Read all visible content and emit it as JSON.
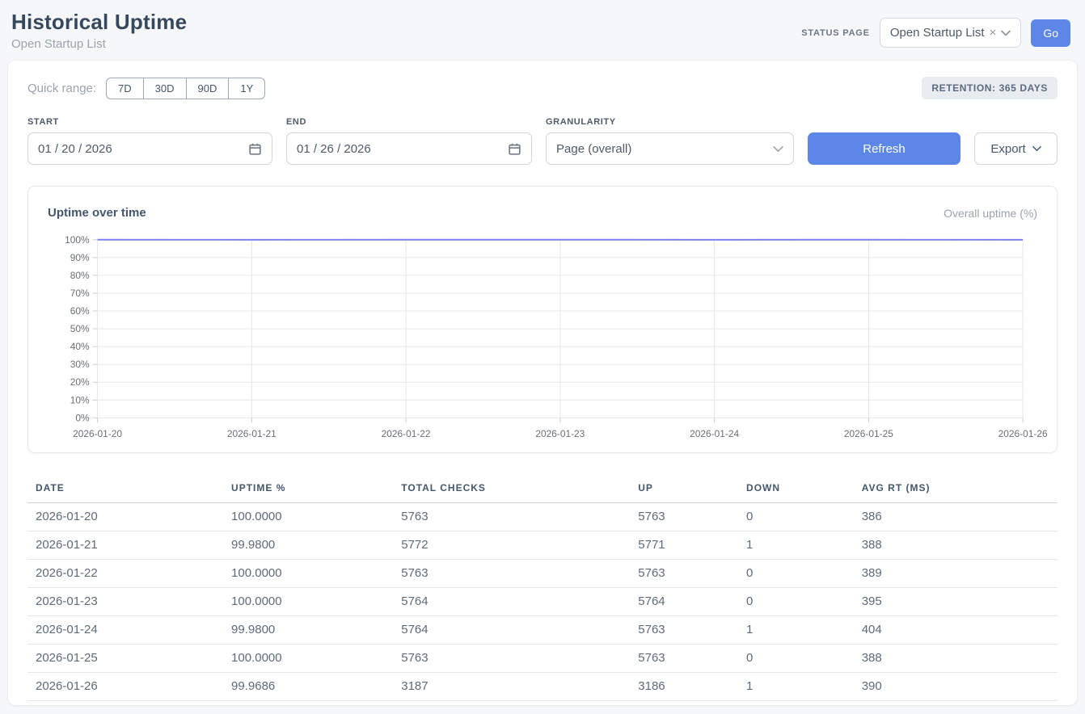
{
  "page": {
    "title": "Historical Uptime",
    "subtitle": "Open Startup List"
  },
  "header": {
    "status_page_label": "STATUS PAGE",
    "status_page_value": "Open Startup List",
    "clear_icon": "×",
    "go_label": "Go"
  },
  "controls": {
    "quick_range_label": "Quick range:",
    "quick_ranges": [
      "7D",
      "30D",
      "90D",
      "1Y"
    ],
    "retention_badge": "RETENTION: 365 DAYS",
    "start_label": "START",
    "start_value": "01 / 20 / 2026",
    "end_label": "END",
    "end_value": "01 / 26 / 2026",
    "granularity_label": "GRANULARITY",
    "granularity_value": "Page (overall)",
    "refresh_label": "Refresh",
    "export_label": "Export"
  },
  "chart": {
    "title": "Uptime over time",
    "legend": "Overall uptime (%)"
  },
  "chart_data": {
    "type": "line",
    "x": [
      "2026-01-20",
      "2026-01-21",
      "2026-01-22",
      "2026-01-23",
      "2026-01-24",
      "2026-01-25",
      "2026-01-26"
    ],
    "series": [
      {
        "name": "Overall uptime (%)",
        "values": [
          100.0,
          99.98,
          100.0,
          100.0,
          99.98,
          100.0,
          99.9686
        ]
      }
    ],
    "ylim": [
      0,
      100
    ],
    "y_tick_step": 10,
    "y_tick_suffix": "%",
    "grid": true,
    "legend_position": "top-right",
    "line_color": "#7b80f0",
    "grid_color": "#e4e7ea",
    "tick_color": "#c9ced4"
  },
  "table": {
    "columns": [
      "DATE",
      "UPTIME %",
      "TOTAL CHECKS",
      "UP",
      "DOWN",
      "AVG RT (MS)"
    ],
    "rows": [
      [
        "2026-01-20",
        "100.0000",
        "5763",
        "5763",
        "0",
        "386"
      ],
      [
        "2026-01-21",
        "99.9800",
        "5772",
        "5771",
        "1",
        "388"
      ],
      [
        "2026-01-22",
        "100.0000",
        "5763",
        "5763",
        "0",
        "389"
      ],
      [
        "2026-01-23",
        "100.0000",
        "5764",
        "5764",
        "0",
        "395"
      ],
      [
        "2026-01-24",
        "99.9800",
        "5764",
        "5763",
        "1",
        "404"
      ],
      [
        "2026-01-25",
        "100.0000",
        "5763",
        "5763",
        "0",
        "388"
      ],
      [
        "2026-01-26",
        "99.9686",
        "3187",
        "3186",
        "1",
        "390"
      ]
    ]
  },
  "colors": {
    "accent_blue": "#5c87e7",
    "line_indigo": "#7b80f0",
    "page_bg": "#f6f7f9"
  }
}
